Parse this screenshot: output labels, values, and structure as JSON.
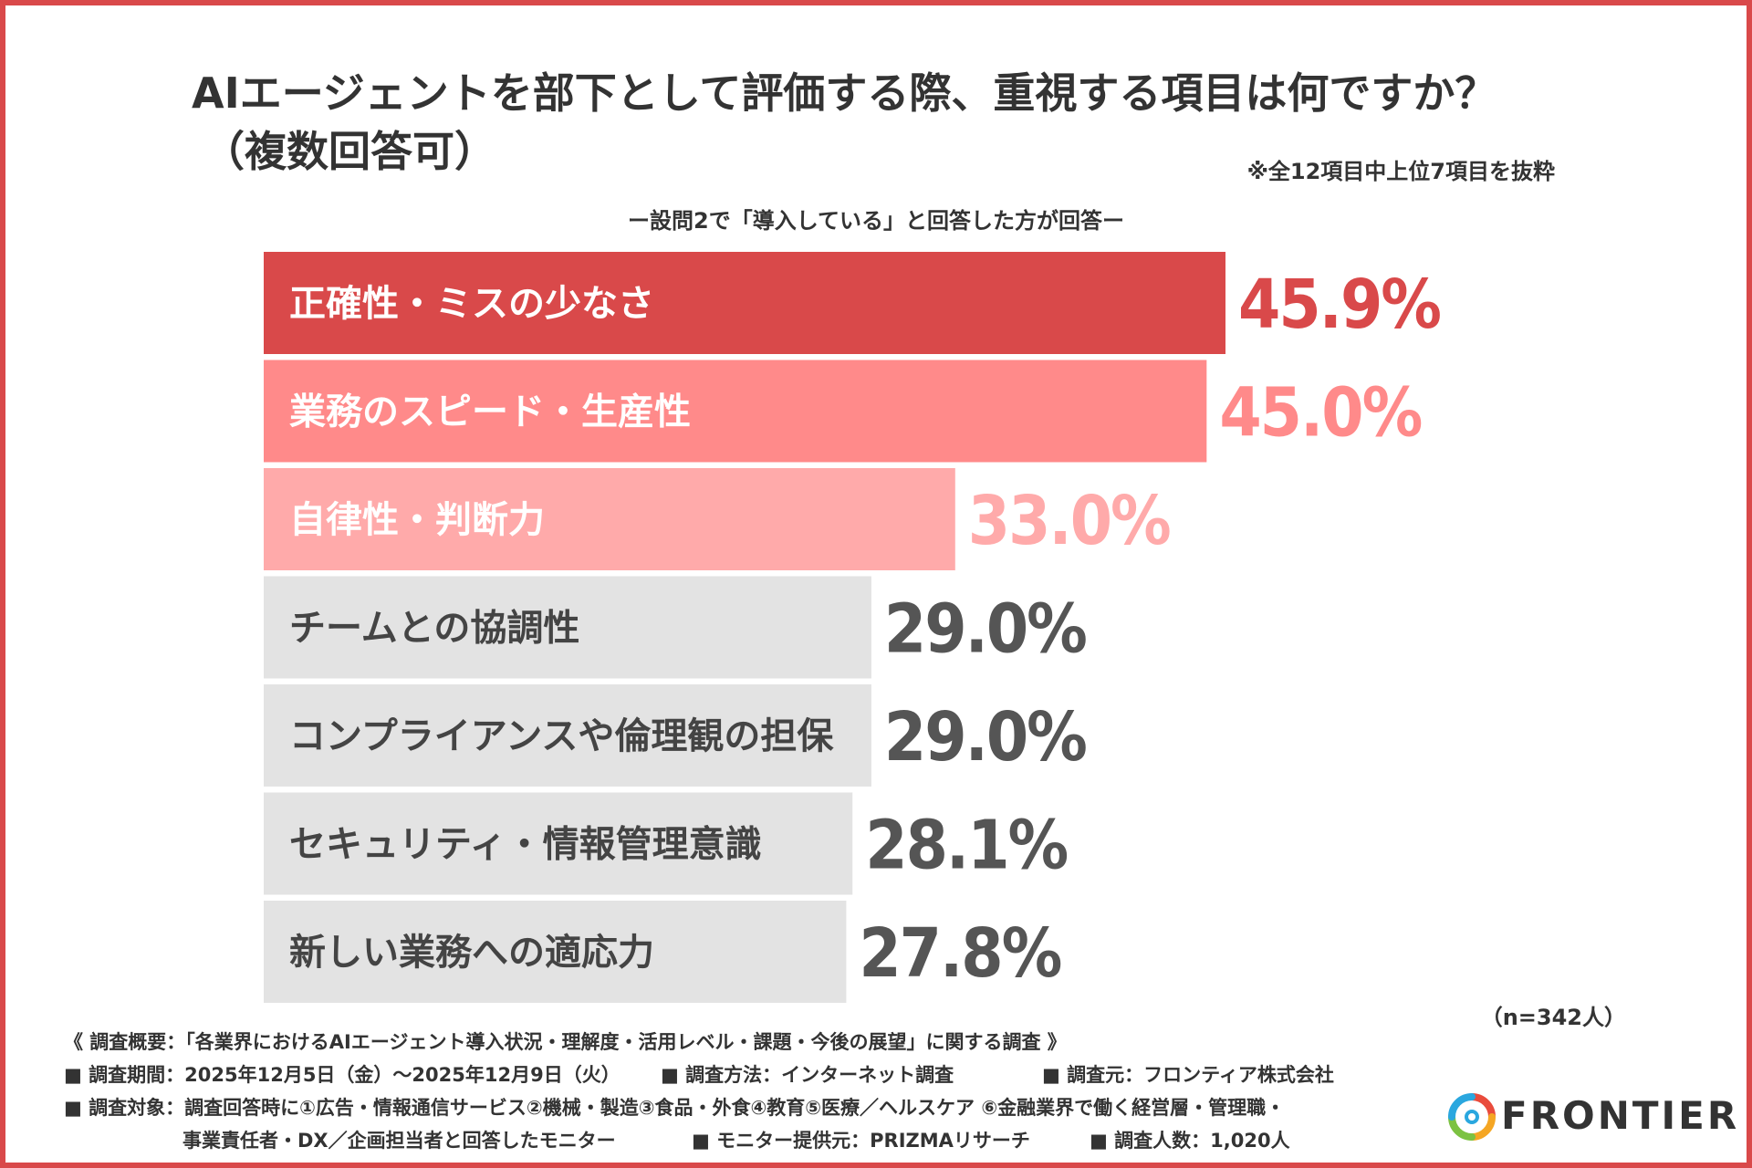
{
  "title": {
    "line1": "AIエージェントを部下として評価する際、重視する項目は何ですか？",
    "line2": "（複数回答可）"
  },
  "note": "※全12項目中上位7項目を抜粋",
  "subtitle": "ー設問2で「導入している」と回答した方が回答ー",
  "n_label": "（n=342人）",
  "chart_data": {
    "type": "bar",
    "orientation": "horizontal",
    "categories": [
      "正確性・ミスの少なさ",
      "業務のスピード・生産性",
      "自律性・判断力",
      "チームとの協調性",
      "コンプライアンスや倫理観の担保",
      "セキュリティ・情報管理意識",
      "新しい業務への適応力"
    ],
    "values": [
      45.9,
      45.0,
      33.0,
      29.0,
      29.0,
      28.1,
      27.8
    ],
    "value_labels": [
      "45.9%",
      "45.0%",
      "33.0%",
      "29.0%",
      "29.0%",
      "28.1%",
      "27.8%"
    ],
    "bar_colors": [
      "#d9494a",
      "#ff8a8a",
      "#ffaaaa",
      "#e3e3e3",
      "#e3e3e3",
      "#e3e3e3",
      "#e3e3e3"
    ],
    "label_colors": [
      "#ffffff",
      "#ffffff",
      "#ffffff",
      "#444444",
      "#444444",
      "#444444",
      "#444444"
    ],
    "value_colors": [
      "#d9494a",
      "#ff8a8a",
      "#ffaaaa",
      "#555555",
      "#555555",
      "#555555",
      "#555555"
    ],
    "unit": "%",
    "grid": false
  },
  "footer": {
    "overview": "《 調査概要：「各業界におけるAIエージェント導入状況・理解度・活用レベル・課題・今後の展望」に関する調査 》",
    "period": "■ 調査期間：2025年12月5日（金）〜2025年12月9日（火）",
    "method": "■ 調査方法：インターネット調査",
    "source": "■ 調査元：フロンティア株式会社",
    "target1": "■ 調査対象：調査回答時に①広告・情報通信サービス②機械・製造③食品・外食④教育⑤医療／ヘルスケア ⑥金融業界で働く経営層・管理職・",
    "target2": "事業責任者・DX／企画担当者と回答したモニター",
    "provider": "■ モニター提供元：PRIZMAリサーチ",
    "count": "■ 調査人数：1,020人"
  },
  "logo": {
    "text": "FRONTIER",
    "colors": [
      "#e94b3c",
      "#f5a623",
      "#7cc242",
      "#2aa7df"
    ]
  }
}
